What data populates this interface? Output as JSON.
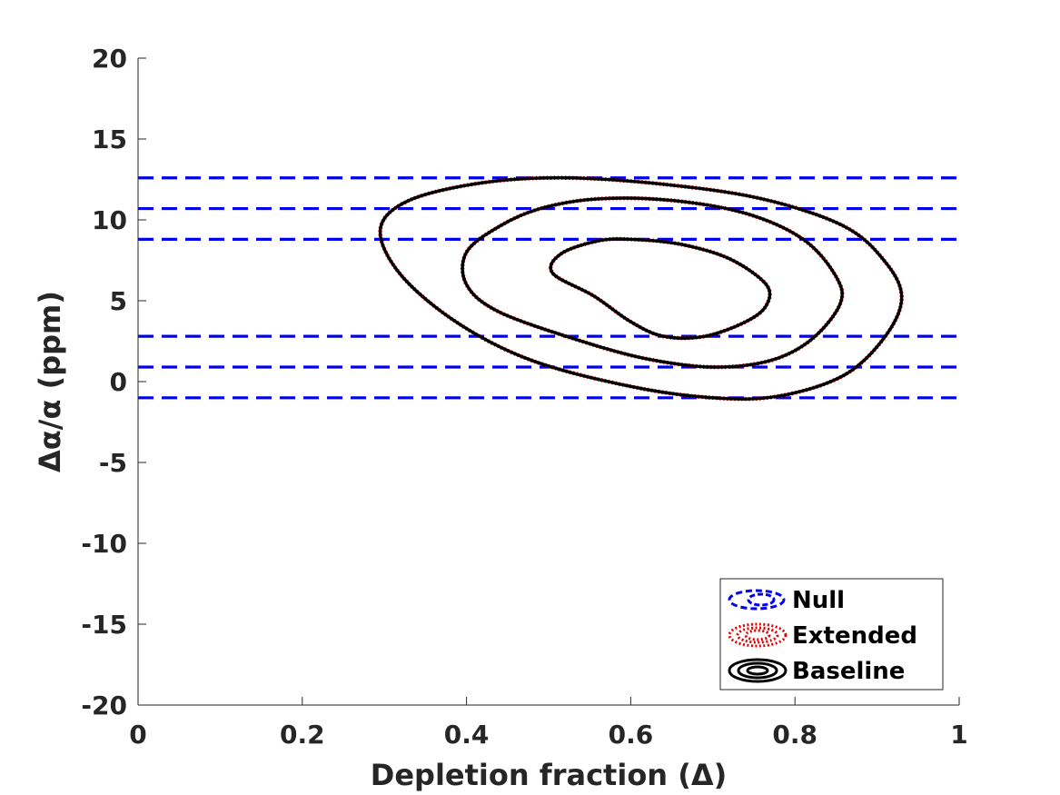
{
  "chart_data": {
    "type": "contour",
    "xlabel": "Depletion fraction (Δ)",
    "ylabel": "Δα/α (ppm)",
    "xlim": [
      0,
      1
    ],
    "ylim": [
      -20,
      20
    ],
    "xticks": [
      "0",
      "0.2",
      "0.4",
      "0.6",
      "0.8",
      "1"
    ],
    "yticks": [
      "20",
      "15",
      "10",
      "5",
      "0",
      "-5",
      "-10",
      "-15",
      "-20"
    ],
    "grid": false,
    "legend_position": "bottom-right",
    "series": [
      {
        "name": "Null",
        "style": "dashed",
        "color": "#0000ee",
        "lines_y": [
          12.6,
          10.7,
          8.8,
          2.8,
          0.9,
          -1.0
        ]
      },
      {
        "name": "Extended",
        "style": "dotted",
        "color": "#e00000",
        "same_as": "Baseline"
      },
      {
        "name": "Baseline",
        "style": "solid",
        "color": "#000000",
        "contours": [
          {
            "level": "inner",
            "points": [
              [
                0.6,
                8.8
              ],
              [
                0.66,
                8.5
              ],
              [
                0.72,
                7.6
              ],
              [
                0.765,
                6.0
              ],
              [
                0.765,
                4.7
              ],
              [
                0.74,
                3.7
              ],
              [
                0.69,
                2.8
              ],
              [
                0.64,
                2.8
              ],
              [
                0.6,
                3.7
              ],
              [
                0.555,
                5.3
              ],
              [
                0.505,
                6.7
              ],
              [
                0.515,
                7.9
              ],
              [
                0.56,
                8.7
              ]
            ]
          },
          {
            "level": "middle",
            "points": [
              [
                0.56,
                11.3
              ],
              [
                0.65,
                11.2
              ],
              [
                0.74,
                10.4
              ],
              [
                0.81,
                8.8
              ],
              [
                0.85,
                6.5
              ],
              [
                0.855,
                4.8
              ],
              [
                0.82,
                2.6
              ],
              [
                0.77,
                1.3
              ],
              [
                0.7,
                0.9
              ],
              [
                0.62,
                1.4
              ],
              [
                0.54,
                2.5
              ],
              [
                0.44,
                4.3
              ],
              [
                0.4,
                6.0
              ],
              [
                0.4,
                8.0
              ],
              [
                0.44,
                9.6
              ],
              [
                0.49,
                10.7
              ]
            ]
          },
          {
            "level": "outer",
            "points": [
              [
                0.52,
                12.6
              ],
              [
                0.64,
                12.2
              ],
              [
                0.76,
                11.3
              ],
              [
                0.86,
                9.6
              ],
              [
                0.91,
                7.4
              ],
              [
                0.93,
                5.2
              ],
              [
                0.91,
                2.8
              ],
              [
                0.86,
                0.4
              ],
              [
                0.78,
                -0.9
              ],
              [
                0.7,
                -1.0
              ],
              [
                0.6,
                -0.3
              ],
              [
                0.48,
                1.3
              ],
              [
                0.39,
                3.6
              ],
              [
                0.32,
                6.6
              ],
              [
                0.295,
                9.4
              ],
              [
                0.33,
                11.2
              ],
              [
                0.42,
                12.3
              ]
            ]
          }
        ]
      }
    ]
  }
}
